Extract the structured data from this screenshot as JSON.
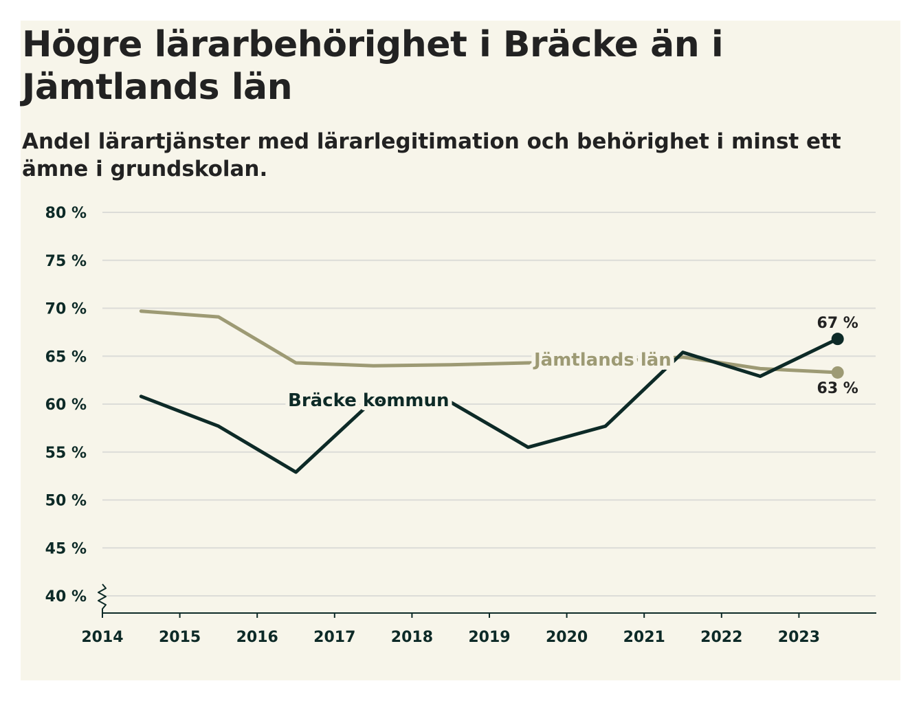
{
  "title": "Högre lärarbehörighet i Bräcke än i Jämtlands län",
  "subtitle": "Andel lärartjänster med lärarlegitimation och behörighet i minst ett ämne i grundskolan.",
  "colors": {
    "background": "#f7f5ea",
    "bracke": "#0d2a27",
    "jamtland": "#9d9a74",
    "grid": "#dcdcd8",
    "axis": "#0d2a27"
  },
  "chart_data": {
    "type": "line",
    "title": "Högre lärarbehörighet i Bräcke än i Jämtlands län",
    "subtitle": "Andel lärartjänster med lärarlegitimation och behörighet i minst ett ämne i grundskolan.",
    "xlabel": "",
    "ylabel": "",
    "x_ticks": [
      "2014",
      "2015",
      "2016",
      "2017",
      "2018",
      "2019",
      "2020",
      "2021",
      "2022",
      "2023"
    ],
    "y_ticks": [
      40,
      45,
      50,
      55,
      60,
      65,
      70,
      75,
      80
    ],
    "y_tick_labels": [
      "40 %",
      "45 %",
      "50 %",
      "55 %",
      "60 %",
      "65 %",
      "70 %",
      "75 %",
      "80 %"
    ],
    "ylim": [
      40,
      80
    ],
    "axis_break": true,
    "grid": true,
    "series": [
      {
        "name": "Jämtlands län",
        "x": [
          2014.5,
          2015.5,
          2016.5,
          2017.5,
          2018.5,
          2019.5,
          2020.5,
          2021.5,
          2022.5,
          2023.5
        ],
        "values": [
          69.7,
          69.1,
          64.3,
          64.0,
          64.1,
          64.3,
          64.4,
          64.9,
          63.7,
          63.3
        ],
        "end_label": "63 %"
      },
      {
        "name": "Bräcke kommun",
        "x": [
          2014.5,
          2015.5,
          2016.5,
          2017.5,
          2018.5,
          2019.5,
          2020.5,
          2021.5,
          2022.5,
          2023.5
        ],
        "values": [
          60.8,
          57.7,
          52.9,
          60.4,
          60.2,
          55.5,
          57.7,
          65.4,
          62.9,
          66.8
        ],
        "end_label": "67 %"
      }
    ]
  }
}
